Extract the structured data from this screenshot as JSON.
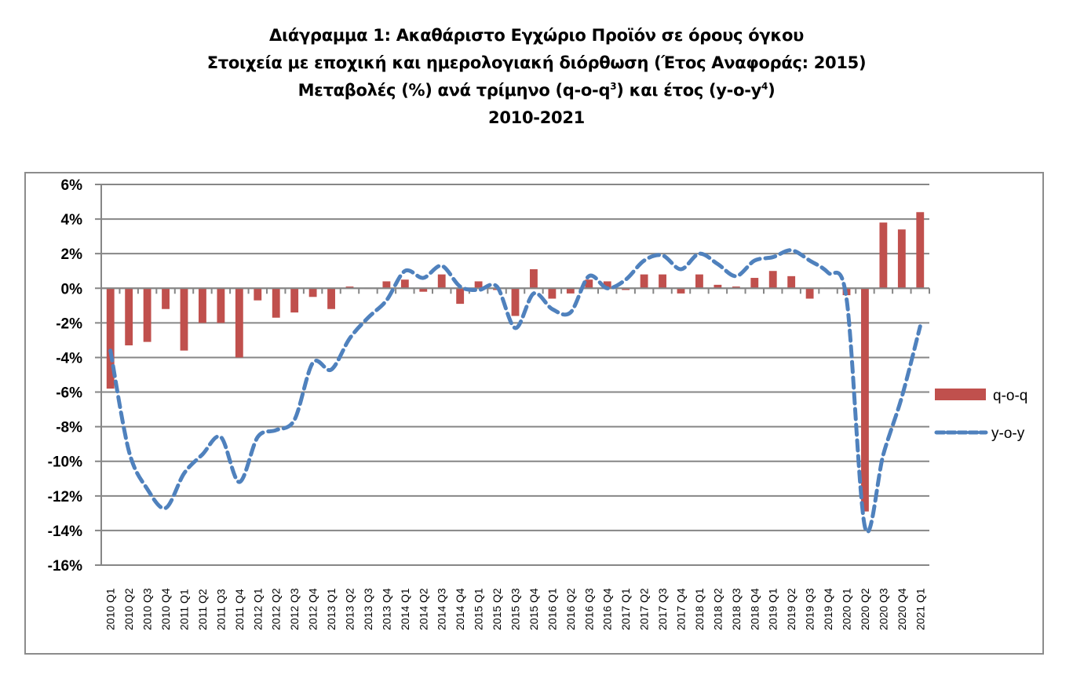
{
  "title": {
    "line1": "Διάγραμμα 1: Ακαθάριστο Εγχώριο Προϊόν σε όρους όγκου",
    "line2": "Στοιχεία με εποχική και ημερολογιακή διόρθωση (Έτος Αναφοράς: 2015)",
    "line3_a": "Μεταβολές (%) ανά τρίμηνο (q-o-q",
    "line3_sup1": "3",
    "line3_b": ") και έτος (y-o-y",
    "line3_sup2": "4",
    "line3_c": ")",
    "line4": "2010-2021"
  },
  "legend": {
    "items": [
      {
        "label": "q-o-q",
        "type": "bar",
        "color": "#c0504d"
      },
      {
        "label": "y-o-y",
        "type": "dashed-line",
        "color": "#4f81bd"
      }
    ]
  },
  "colors": {
    "bar": "#c0504d",
    "line": "#4f81bd",
    "grid": "#868686",
    "frame": "#8c8c8c"
  },
  "chart_data": {
    "type": "bar",
    "title": "Διάγραμμα 1: Ακαθάριστο Εγχώριο Προϊόν σε όρους όγκου — Στοιχεία με εποχική και ημερολογιακή διόρθωση (Έτος Αναφοράς: 2015) — Μεταβολές (%) ανά τρίμηνο (q-o-q) και έτος (y-o-y) — 2010-2021",
    "xlabel": "",
    "ylabel": "",
    "ylim": [
      -16,
      6
    ],
    "yticks": [
      "6%",
      "4%",
      "2%",
      "0%",
      "-2%",
      "-4%",
      "-6%",
      "-8%",
      "-10%",
      "-12%",
      "-14%",
      "-16%"
    ],
    "grid": true,
    "legend_position": "right",
    "categories": [
      "2010 Q1",
      "2010 Q2",
      "2010 Q3",
      "2010 Q4",
      "2011 Q1",
      "2011 Q2",
      "2011 Q3",
      "2011 Q4",
      "2012 Q1",
      "2012 Q2",
      "2012 Q3",
      "2012 Q4",
      "2013 Q1",
      "2013 Q2",
      "2013 Q3",
      "2013 Q4",
      "2014 Q1",
      "2014 Q2",
      "2014 Q3",
      "2014 Q4",
      "2015 Q1",
      "2015 Q2",
      "2015 Q3",
      "2015 Q4",
      "2016 Q1",
      "2016 Q2",
      "2016 Q3",
      "2016 Q4",
      "2017 Q1",
      "2017 Q2",
      "2017 Q3",
      "2017 Q4",
      "2018 Q1",
      "2018 Q2",
      "2018 Q3",
      "2018 Q4",
      "2019 Q1",
      "2019 Q2",
      "2019 Q3",
      "2019 Q4",
      "2020 Q1",
      "2020 Q2",
      "2020 Q3",
      "2020 Q4",
      "2021 Q1"
    ],
    "series": [
      {
        "name": "q-o-q",
        "type": "bar",
        "values": [
          -5.8,
          -3.3,
          -3.1,
          -1.2,
          -3.6,
          -2.0,
          -2.0,
          -4.0,
          -0.7,
          -1.7,
          -1.4,
          -0.5,
          -1.2,
          0.1,
          0.0,
          0.4,
          0.5,
          -0.2,
          0.8,
          -0.9,
          0.4,
          -0.1,
          -1.6,
          1.1,
          -0.6,
          -0.3,
          0.5,
          0.4,
          -0.1,
          0.8,
          0.8,
          -0.3,
          0.8,
          0.2,
          0.1,
          0.6,
          1.0,
          0.7,
          -0.6,
          0.0,
          -0.4,
          -12.9,
          3.8,
          3.4,
          4.4
        ]
      },
      {
        "name": "y-o-y",
        "type": "line",
        "style": "dashed",
        "values": [
          -3.6,
          -9.4,
          -11.6,
          -12.7,
          -10.7,
          -9.6,
          -8.6,
          -11.2,
          -8.6,
          -8.2,
          -7.6,
          -4.3,
          -4.7,
          -2.9,
          -1.7,
          -0.7,
          1.0,
          0.6,
          1.3,
          0.1,
          -0.1,
          0.1,
          -2.3,
          -0.3,
          -1.2,
          -1.4,
          0.7,
          0.0,
          0.5,
          1.6,
          1.9,
          1.1,
          2.0,
          1.4,
          0.7,
          1.6,
          1.8,
          2.2,
          1.6,
          0.9,
          -0.6,
          -13.8,
          -9.6,
          -6.3,
          -2.2
        ]
      }
    ]
  }
}
